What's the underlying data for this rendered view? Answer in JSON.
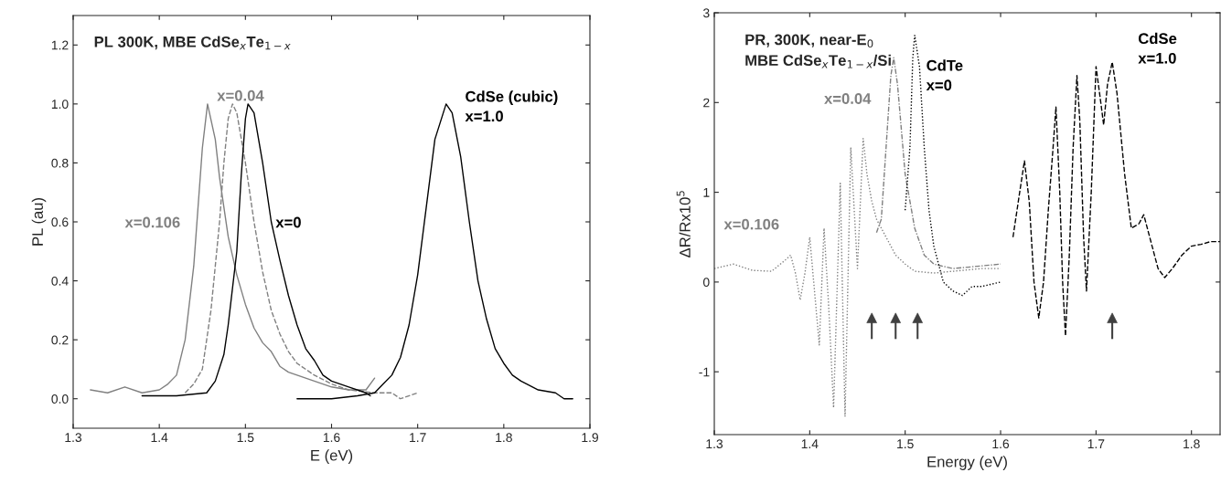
{
  "chart_data": [
    {
      "type": "line",
      "title": "PL 300K, MBE CdSe$_{x}$Te$_{1−x}$",
      "xlabel": "E (eV)",
      "ylabel": "PL (au)",
      "xlim": [
        1.3,
        1.9
      ],
      "xticks": [
        1.3,
        1.4,
        1.5,
        1.6,
        1.7,
        1.8,
        1.9
      ],
      "ylim": [
        -0.1,
        1.3
      ],
      "yticks": [
        {
          "value": 0,
          "label": "0.0"
        },
        {
          "value": 0.2,
          "label": "0.2"
        },
        {
          "value": 0.4,
          "label": "0.4"
        },
        {
          "value": 0.6,
          "label": "0.6"
        },
        {
          "value": 0.8,
          "label": "0.8"
        },
        {
          "value": 1.0,
          "label": "1.0"
        },
        {
          "value": 1.2,
          "label": "1.2"
        }
      ],
      "series": [
        {
          "name": "x=0.106",
          "color": "#808080",
          "line_style": "solid",
          "x": [
            1.32,
            1.34,
            1.36,
            1.38,
            1.4,
            1.41,
            1.42,
            1.43,
            1.44,
            1.45,
            1.456,
            1.465,
            1.47,
            1.48,
            1.49,
            1.5,
            1.51,
            1.52,
            1.53,
            1.54,
            1.55,
            1.56,
            1.58,
            1.6,
            1.62,
            1.64,
            1.65
          ],
          "values": [
            0.03,
            0.02,
            0.04,
            0.02,
            0.03,
            0.05,
            0.08,
            0.2,
            0.45,
            0.85,
            1.0,
            0.88,
            0.75,
            0.55,
            0.42,
            0.32,
            0.24,
            0.19,
            0.16,
            0.11,
            0.09,
            0.08,
            0.06,
            0.04,
            0.03,
            0.03,
            0.07
          ]
        },
        {
          "name": "x=0.04",
          "color": "#808080",
          "line_style": "dashed",
          "x": [
            1.43,
            1.44,
            1.45,
            1.46,
            1.47,
            1.475,
            1.48,
            1.485,
            1.49,
            1.5,
            1.51,
            1.52,
            1.53,
            1.54,
            1.55,
            1.56,
            1.58,
            1.6,
            1.62,
            1.65,
            1.67,
            1.68,
            1.7
          ],
          "values": [
            0.02,
            0.05,
            0.1,
            0.3,
            0.6,
            0.8,
            0.95,
            1.0,
            0.97,
            0.8,
            0.6,
            0.43,
            0.3,
            0.22,
            0.16,
            0.12,
            0.08,
            0.05,
            0.03,
            0.02,
            0.02,
            0.0,
            0.02
          ]
        },
        {
          "name": "x=0",
          "color": "#000000",
          "line_style": "solid",
          "x": [
            1.38,
            1.4,
            1.42,
            1.455,
            1.465,
            1.475,
            1.48,
            1.49,
            1.495,
            1.5,
            1.503,
            1.51,
            1.52,
            1.53,
            1.54,
            1.55,
            1.56,
            1.57,
            1.58,
            1.59,
            1.6,
            1.62,
            1.64,
            1.645
          ],
          "values": [
            0.01,
            0.01,
            0.01,
            0.02,
            0.06,
            0.15,
            0.25,
            0.5,
            0.75,
            0.95,
            1.0,
            0.97,
            0.8,
            0.6,
            0.47,
            0.35,
            0.25,
            0.17,
            0.13,
            0.08,
            0.06,
            0.04,
            0.02,
            0.01
          ]
        },
        {
          "name": "CdSe (cubic)\nx=1.0",
          "color": "#000000",
          "line_style": "solid",
          "x": [
            1.56,
            1.6,
            1.63,
            1.65,
            1.66,
            1.67,
            1.68,
            1.69,
            1.7,
            1.71,
            1.72,
            1.733,
            1.74,
            1.75,
            1.76,
            1.77,
            1.78,
            1.79,
            1.8,
            1.81,
            1.82,
            1.84,
            1.86,
            1.87,
            1.88
          ],
          "values": [
            0.0,
            0.0,
            0.01,
            0.02,
            0.05,
            0.08,
            0.14,
            0.25,
            0.42,
            0.65,
            0.88,
            1.0,
            0.97,
            0.82,
            0.6,
            0.4,
            0.27,
            0.17,
            0.12,
            0.08,
            0.06,
            0.03,
            0.02,
            0.0,
            0.0
          ]
        }
      ]
    },
    {
      "type": "line",
      "title": "PR, 300K, near-E$_{0}$\nMBE CdSe$_{x}$Te$_{1−x}$/Si",
      "xlabel": "Energy (eV)",
      "ylabel": "ΔR/Rx10$^{5}$",
      "xlim": [
        1.3,
        1.83
      ],
      "xticks": [
        1.3,
        1.4,
        1.5,
        1.6,
        1.7,
        1.8
      ],
      "ylim": [
        -1.7,
        3
      ],
      "yticks": [
        -1,
        0,
        1,
        2,
        3
      ],
      "series": [
        {
          "name": "x=0.106",
          "color": "#808080",
          "line_style": "dotted",
          "x": [
            1.3,
            1.32,
            1.34,
            1.36,
            1.375,
            1.38,
            1.385,
            1.39,
            1.395,
            1.4,
            1.405,
            1.41,
            1.415,
            1.42,
            1.425,
            1.432,
            1.437,
            1.443,
            1.45,
            1.456,
            1.46,
            1.465,
            1.47,
            1.48,
            1.49,
            1.5,
            1.51,
            1.53,
            1.55,
            1.58,
            1.6
          ],
          "values": [
            0.15,
            0.2,
            0.13,
            0.12,
            0.25,
            0.3,
            0.1,
            -0.2,
            0.1,
            0.5,
            -0.1,
            -0.7,
            0.6,
            -0.3,
            -1.4,
            1.1,
            -1.5,
            1.5,
            0.15,
            1.6,
            1.2,
            0.9,
            0.7,
            0.5,
            0.3,
            0.2,
            0.12,
            0.1,
            0.12,
            0.15,
            0.15
          ]
        },
        {
          "name": "x=0.04",
          "color": "#808080",
          "line_style": "dashdot",
          "x": [
            1.47,
            1.475,
            1.48,
            1.485,
            1.488,
            1.492,
            1.5,
            1.51,
            1.52,
            1.53,
            1.55,
            1.6
          ],
          "values": [
            0.55,
            0.7,
            1.5,
            2.3,
            2.5,
            2.2,
            1.2,
            0.6,
            0.3,
            0.2,
            0.15,
            0.2
          ]
        },
        {
          "name": "CdTe\nx=0",
          "color": "#000000",
          "line_style": "dotted",
          "x": [
            1.5,
            1.505,
            1.508,
            1.51,
            1.515,
            1.52,
            1.525,
            1.53,
            1.535,
            1.54,
            1.55,
            1.56,
            1.57,
            1.58,
            1.6
          ],
          "values": [
            0.8,
            1.5,
            2.5,
            2.75,
            2.4,
            1.5,
            0.8,
            0.4,
            0.2,
            0.0,
            -0.1,
            -0.15,
            -0.05,
            -0.05,
            0.0
          ]
        },
        {
          "name": "CdSe\nx=1.0",
          "color": "#000000",
          "line_style": "dashed",
          "x": [
            1.613,
            1.62,
            1.625,
            1.63,
            1.635,
            1.64,
            1.645,
            1.65,
            1.655,
            1.658,
            1.662,
            1.665,
            1.668,
            1.672,
            1.676,
            1.68,
            1.683,
            1.687,
            1.69,
            1.695,
            1.7,
            1.705,
            1.708,
            1.712,
            1.717,
            1.722,
            1.73,
            1.737,
            1.745,
            1.75,
            1.755,
            1.765,
            1.772,
            1.78,
            1.79,
            1.8,
            1.81,
            1.82,
            1.83
          ],
          "values": [
            0.5,
            1.0,
            1.35,
            0.9,
            0.0,
            -0.4,
            0.0,
            0.8,
            1.5,
            1.95,
            1.0,
            0.0,
            -0.6,
            0.3,
            1.5,
            2.3,
            1.8,
            0.5,
            -0.1,
            1.0,
            2.4,
            2.0,
            1.75,
            2.2,
            2.45,
            2.1,
            1.2,
            0.6,
            0.65,
            0.75,
            0.55,
            0.15,
            0.05,
            0.15,
            0.3,
            0.4,
            0.42,
            0.45,
            0.45
          ]
        },
        {
          "type": "scatter",
          "marker": "triangle",
          "color": "#404040",
          "x": [
            1.465,
            1.49,
            1.513,
            1.717
          ],
          "values": [
            -0.4,
            -0.4,
            -0.4,
            -0.4
          ]
        }
      ]
    }
  ]
}
